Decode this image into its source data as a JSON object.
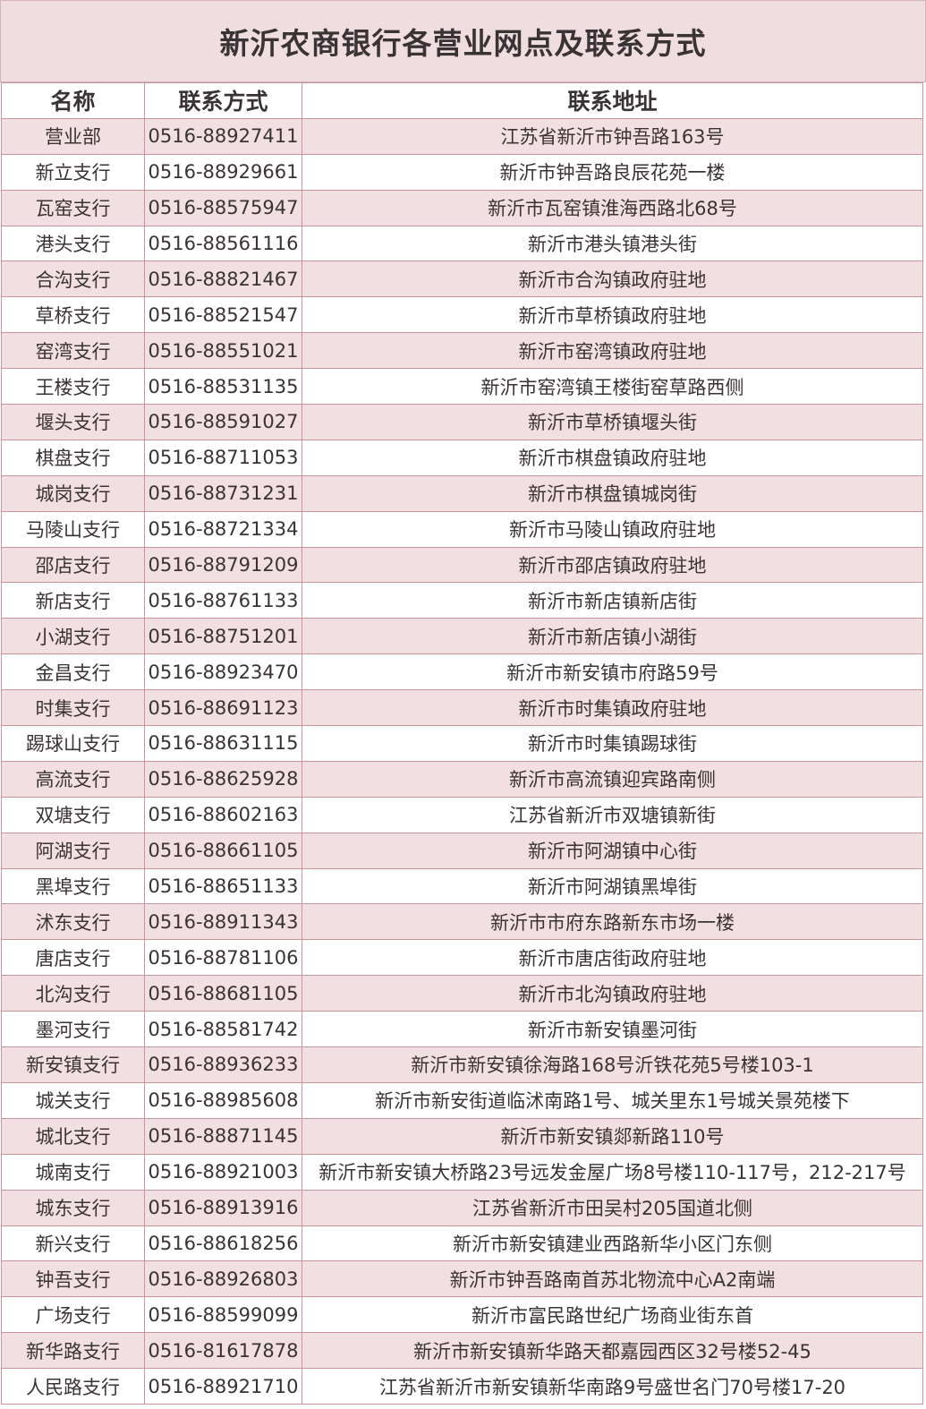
{
  "title": "新沂农商银行各营业网点及联系方式",
  "colors": {
    "row_alt": "#f2dfe1",
    "border": "#c9959b",
    "title_bg": "#f0dde0"
  },
  "headers": [
    "名称",
    "联系方式",
    "联系地址"
  ],
  "rows": [
    [
      "营业部",
      "0516-88927411",
      "江苏省新沂市钟吾路163号"
    ],
    [
      "新立支行",
      "0516-88929661",
      "新沂市钟吾路良辰花苑一楼"
    ],
    [
      "瓦窑支行",
      "0516-88575947",
      "新沂市瓦窑镇淮海西路北68号"
    ],
    [
      "港头支行",
      "0516-88561116",
      "新沂市港头镇港头街"
    ],
    [
      "合沟支行",
      "0516-88821467",
      "新沂市合沟镇政府驻地"
    ],
    [
      "草桥支行",
      "0516-88521547",
      "新沂市草桥镇政府驻地"
    ],
    [
      "窑湾支行",
      "0516-88551021",
      "新沂市窑湾镇政府驻地"
    ],
    [
      "王楼支行",
      "0516-88531135",
      "新沂市窑湾镇王楼街窑草路西侧"
    ],
    [
      "堰头支行",
      "0516-88591027",
      "新沂市草桥镇堰头街"
    ],
    [
      "棋盘支行",
      "0516-88711053",
      "新沂市棋盘镇政府驻地"
    ],
    [
      "城岗支行",
      "0516-88731231",
      "新沂市棋盘镇城岗街"
    ],
    [
      "马陵山支行",
      "0516-88721334",
      "新沂市马陵山镇政府驻地"
    ],
    [
      "邵店支行",
      "0516-88791209",
      "新沂市邵店镇政府驻地"
    ],
    [
      "新店支行",
      "0516-88761133",
      "新沂市新店镇新店街"
    ],
    [
      "小湖支行",
      "0516-88751201",
      "新沂市新店镇小湖街"
    ],
    [
      "金昌支行",
      "0516-88923470",
      "新沂市新安镇市府路59号"
    ],
    [
      "时集支行",
      "0516-88691123",
      "新沂市时集镇政府驻地"
    ],
    [
      "踢球山支行",
      "0516-88631115",
      "新沂市时集镇踢球街"
    ],
    [
      "高流支行",
      "0516-88625928",
      "新沂市高流镇迎宾路南侧"
    ],
    [
      "双塘支行",
      "0516-88602163",
      "江苏省新沂市双塘镇新街"
    ],
    [
      "阿湖支行",
      "0516-88661105",
      "新沂市阿湖镇中心街"
    ],
    [
      "黑埠支行",
      "0516-88651133",
      "新沂市阿湖镇黑埠街"
    ],
    [
      "沭东支行",
      "0516-88911343",
      "新沂市市府东路新东市场一楼"
    ],
    [
      "唐店支行",
      "0516-88781106",
      "新沂市唐店街政府驻地"
    ],
    [
      "北沟支行",
      "0516-88681105",
      "新沂市北沟镇政府驻地"
    ],
    [
      "墨河支行",
      "0516-88581742",
      "新沂市新安镇墨河街"
    ],
    [
      "新安镇支行",
      "0516-88936233",
      "新沂市新安镇徐海路168号沂铁花苑5号楼103-1"
    ],
    [
      "城关支行",
      "0516-88985608",
      "新沂市新安街道临沭南路1号、城关里东1号城关景苑楼下"
    ],
    [
      "城北支行",
      "0516-88871145",
      "新沂市新安镇郯新路110号"
    ],
    [
      "城南支行",
      "0516-88921003",
      "新沂市新安镇大桥路23号远发金屋广场8号楼110-117号，212-217号"
    ],
    [
      "城东支行",
      "0516-88913916",
      "江苏省新沂市田吴村205国道北侧"
    ],
    [
      "新兴支行",
      "0516-88618256",
      "新沂市新安镇建业西路新华小区门东侧"
    ],
    [
      "钟吾支行",
      "0516-88926803",
      "新沂市钟吾路南首苏北物流中心A2南端"
    ],
    [
      "广场支行",
      "0516-88599099",
      "新沂市富民路世纪广场商业街东首"
    ],
    [
      "新华路支行",
      "0516-81617878",
      "新沂市新安镇新华路天都嘉园西区32号楼52-45"
    ],
    [
      "人民路支行",
      "0516-88921710",
      "江苏省新沂市新安镇新华南路9号盛世名门70号楼17-20"
    ]
  ]
}
